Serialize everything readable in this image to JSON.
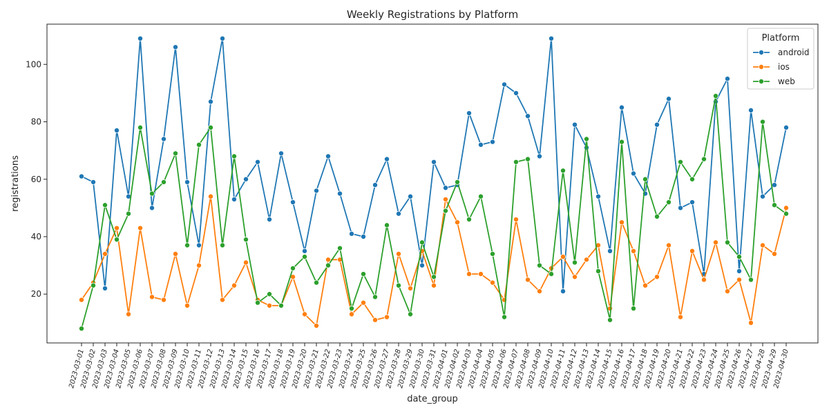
{
  "chart_data": {
    "type": "line",
    "title": "Weekly Registrations by Platform",
    "xlabel": "date_group",
    "ylabel": "registrations",
    "ylim": [
      3,
      114
    ],
    "yticks": [
      20,
      40,
      60,
      80,
      100
    ],
    "grid": false,
    "legend": {
      "title": "Platform",
      "placement": "top-right"
    },
    "x": [
      "2023-03-01",
      "2023-03-02",
      "2023-03-03",
      "2023-03-04",
      "2023-03-05",
      "2023-03-06",
      "2023-03-07",
      "2023-03-08",
      "2023-03-09",
      "2023-03-10",
      "2023-03-11",
      "2023-03-12",
      "2023-03-13",
      "2023-03-14",
      "2023-03-15",
      "2023-03-16",
      "2023-03-17",
      "2023-03-18",
      "2023-03-19",
      "2023-03-20",
      "2023-03-21",
      "2023-03-22",
      "2023-03-23",
      "2023-03-24",
      "2023-03-25",
      "2023-03-26",
      "2023-03-27",
      "2023-03-28",
      "2023-03-29",
      "2023-03-30",
      "2023-03-31",
      "2023-04-01",
      "2023-04-02",
      "2023-04-03",
      "2023-04-04",
      "2023-04-05",
      "2023-04-06",
      "2023-04-07",
      "2023-04-08",
      "2023-04-09",
      "2023-04-10",
      "2023-04-11",
      "2023-04-12",
      "2023-04-13",
      "2023-04-14",
      "2023-04-15",
      "2023-04-16",
      "2023-04-17",
      "2023-04-18",
      "2023-04-19",
      "2023-04-20",
      "2023-04-21",
      "2023-04-22",
      "2023-04-23",
      "2023-04-24",
      "2023-04-25",
      "2023-04-26",
      "2023-04-27",
      "2023-04-28",
      "2023-04-29",
      "2023-04-30"
    ],
    "series": [
      {
        "name": "android",
        "color": "#1f77b4",
        "values": [
          61,
          59,
          22,
          77,
          54,
          109,
          50,
          74,
          106,
          59,
          37,
          87,
          109,
          53,
          60,
          66,
          46,
          69,
          52,
          35,
          56,
          68,
          55,
          41,
          40,
          58,
          67,
          48,
          54,
          30,
          66,
          57,
          58,
          83,
          72,
          73,
          93,
          90,
          82,
          68,
          109,
          21,
          79,
          71,
          54,
          35,
          85,
          62,
          55,
          79,
          88,
          50,
          52,
          27,
          87,
          95,
          28,
          84,
          54,
          58,
          78
        ]
      },
      {
        "name": "ios",
        "color": "#ff7f0e",
        "values": [
          18,
          24,
          34,
          43,
          13,
          43,
          19,
          18,
          34,
          16,
          30,
          54,
          18,
          23,
          31,
          18,
          16,
          16,
          26,
          13,
          9,
          32,
          32,
          13,
          17,
          11,
          12,
          34,
          22,
          35,
          23,
          53,
          45,
          27,
          27,
          24,
          18,
          46,
          25,
          21,
          29,
          33,
          26,
          32,
          37,
          15,
          45,
          35,
          23,
          26,
          37,
          12,
          35,
          25,
          38,
          21,
          25,
          10,
          37,
          34,
          50
        ]
      },
      {
        "name": "web",
        "color": "#2ca02c",
        "values": [
          8,
          23,
          51,
          39,
          48,
          78,
          55,
          59,
          69,
          37,
          72,
          78,
          37,
          68,
          39,
          17,
          20,
          16,
          29,
          33,
          24,
          30,
          36,
          15,
          27,
          19,
          44,
          23,
          13,
          38,
          26,
          49,
          59,
          46,
          54,
          34,
          12,
          66,
          67,
          30,
          27,
          63,
          31,
          74,
          28,
          11,
          73,
          15,
          60,
          47,
          52,
          66,
          60,
          67,
          89,
          38,
          33,
          25,
          80,
          51,
          48
        ]
      }
    ]
  }
}
